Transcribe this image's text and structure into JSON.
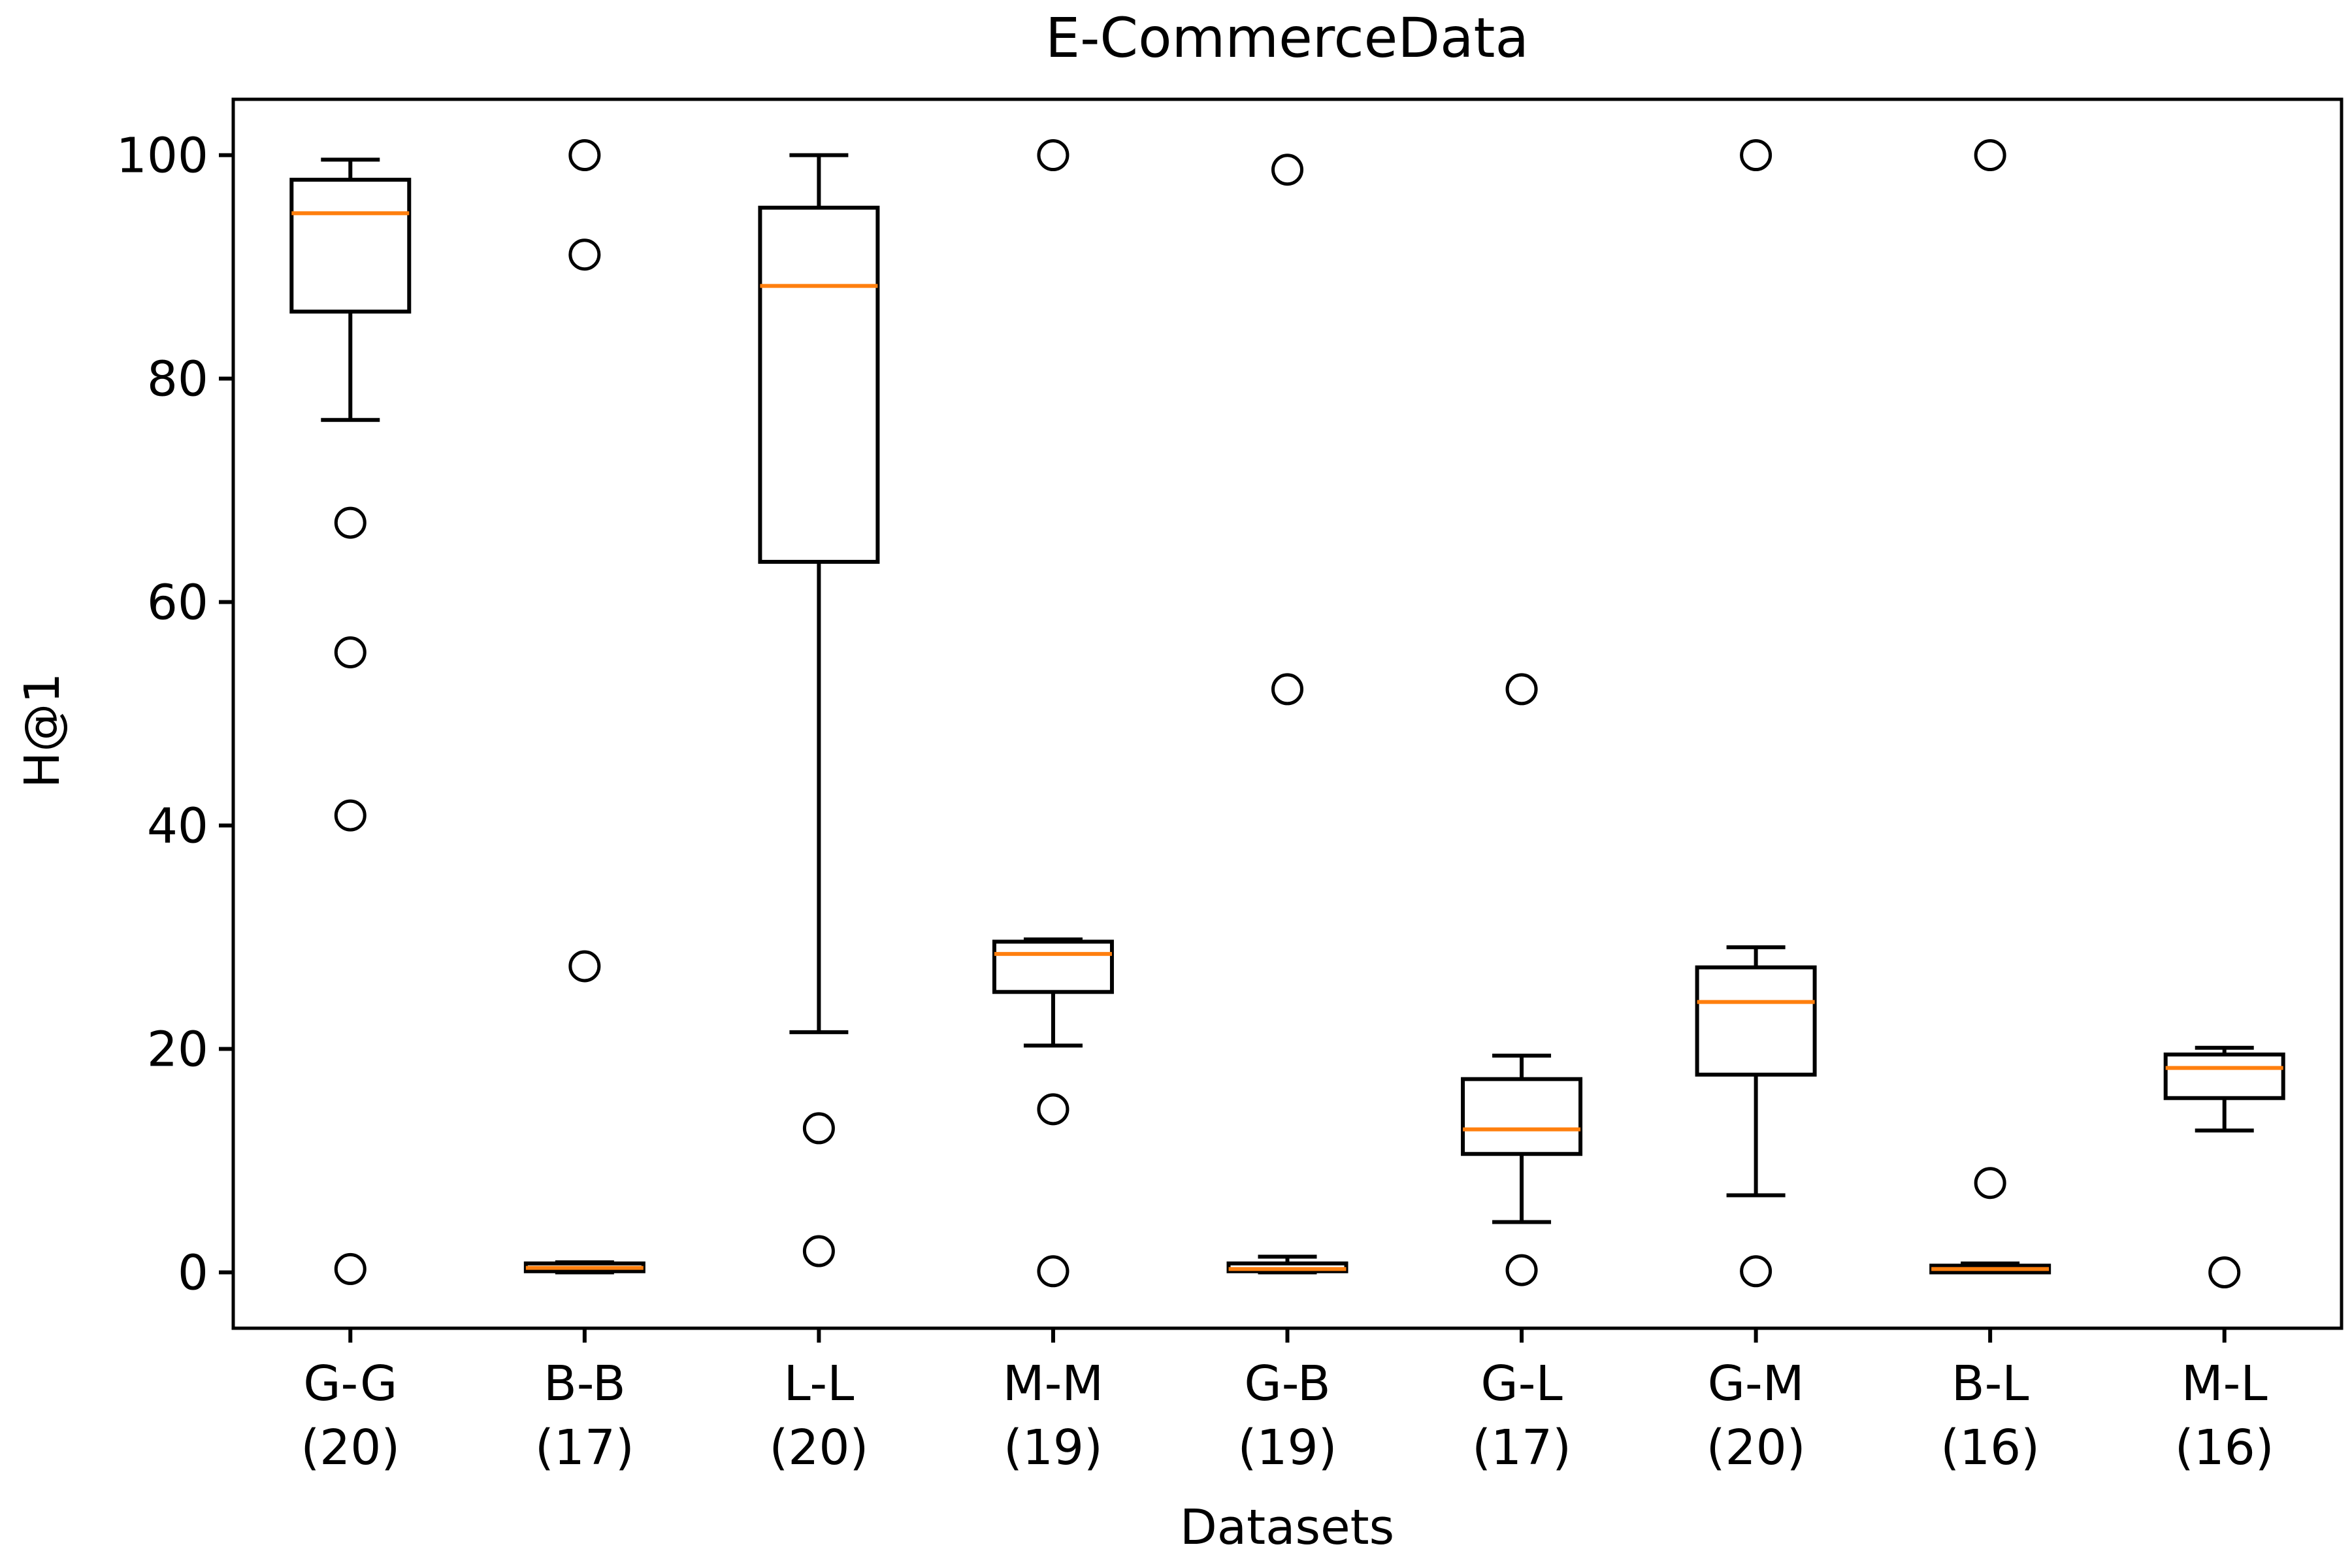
{
  "chart_data": {
    "type": "boxplot",
    "title": "E-CommerceData",
    "xlabel": "Datasets",
    "ylabel": "H@1",
    "ylim": [
      -5,
      105
    ],
    "yticks": [
      0,
      20,
      40,
      60,
      80,
      100
    ],
    "grid": false,
    "categories": [
      {
        "name": "G-G",
        "count": "(20)"
      },
      {
        "name": "B-B",
        "count": "(17)"
      },
      {
        "name": "L-L",
        "count": "(20)"
      },
      {
        "name": "M-M",
        "count": "(19)"
      },
      {
        "name": "G-B",
        "count": "(19)"
      },
      {
        "name": "G-L",
        "count": "(17)"
      },
      {
        "name": "G-M",
        "count": "(20)"
      },
      {
        "name": "B-L",
        "count": "(16)"
      },
      {
        "name": "M-L",
        "count": "(16)"
      }
    ],
    "boxes": [
      {
        "whislo": 76.3,
        "q1": 86.0,
        "med": 94.8,
        "q3": 97.8,
        "whishi": 99.6,
        "fliers": [
          67.1,
          55.5,
          40.9,
          0.3
        ]
      },
      {
        "whislo": 0.0,
        "q1": 0.1,
        "med": 0.4,
        "q3": 0.8,
        "whishi": 0.9,
        "fliers": [
          100.0,
          91.1,
          27.4
        ]
      },
      {
        "whislo": 21.5,
        "q1": 63.6,
        "med": 88.3,
        "q3": 95.3,
        "whishi": 100.0,
        "fliers": [
          12.9,
          1.9
        ]
      },
      {
        "whislo": 20.3,
        "q1": 25.1,
        "med": 28.5,
        "q3": 29.6,
        "whishi": 29.8,
        "fliers": [
          100.0,
          14.6,
          0.1
        ]
      },
      {
        "whislo": 0.0,
        "q1": 0.1,
        "med": 0.3,
        "q3": 0.8,
        "whishi": 1.4,
        "fliers": [
          98.7,
          52.2
        ]
      },
      {
        "whislo": 4.5,
        "q1": 10.6,
        "med": 12.8,
        "q3": 17.3,
        "whishi": 19.4,
        "fliers": [
          52.2,
          0.2
        ]
      },
      {
        "whislo": 6.9,
        "q1": 17.7,
        "med": 24.2,
        "q3": 27.3,
        "whishi": 29.1,
        "fliers": [
          100.0,
          0.1
        ]
      },
      {
        "whislo": 0.0,
        "q1": 0.0,
        "med": 0.3,
        "q3": 0.6,
        "whishi": 0.8,
        "fliers": [
          100.0,
          8.0
        ]
      },
      {
        "whislo": 12.7,
        "q1": 15.6,
        "med": 18.3,
        "q3": 19.5,
        "whishi": 20.1,
        "fliers": [
          0.0
        ]
      }
    ],
    "colors": {
      "box": "#000000",
      "median": "#ff7f0e"
    }
  }
}
